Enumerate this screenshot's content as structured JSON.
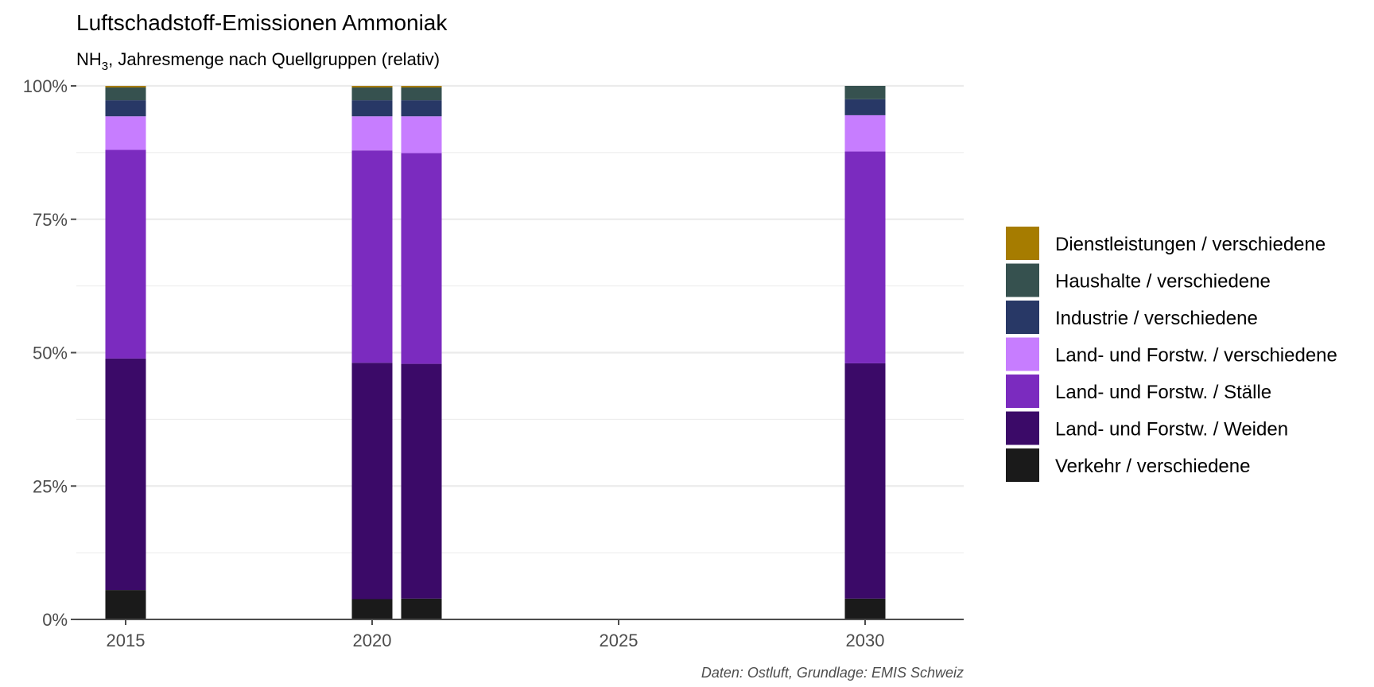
{
  "chart_data": {
    "type": "bar",
    "stacked": true,
    "normalized": true,
    "title": "Luftschadstoff-Emissionen Ammoniak",
    "subtitle": {
      "prefix": "NH",
      "sub": "3",
      "rest": ", Jahresmenge nach Quellgruppen (relativ)"
    },
    "caption": "Daten: Ostluft, Grundlage: EMIS Schweiz",
    "x": [
      2015,
      2020,
      2021,
      2030
    ],
    "xlim": [
      2014,
      2032
    ],
    "xticks": [
      {
        "value": 2015,
        "label": "2015"
      },
      {
        "value": 2020,
        "label": "2020"
      },
      {
        "value": 2025,
        "label": "2025"
      },
      {
        "value": 2030,
        "label": "2030"
      }
    ],
    "ylim": [
      0,
      1
    ],
    "yticks": [
      {
        "value": 0,
        "label": "0%"
      },
      {
        "value": 0.25,
        "label": "25%"
      },
      {
        "value": 0.5,
        "label": "50%"
      },
      {
        "value": 0.75,
        "label": "75%"
      },
      {
        "value": 1,
        "label": "100%"
      }
    ],
    "grid": true,
    "legend_position": "right",
    "series": [
      {
        "name": "Verkehr / verschiedene",
        "color": "#1a1a1a",
        "values": [
          0.055,
          0.038,
          0.039,
          0.039
        ]
      },
      {
        "name": "Land- und Forstw. / Weiden",
        "color": "#3b0a68",
        "values": [
          0.434,
          0.443,
          0.44,
          0.441
        ]
      },
      {
        "name": "Land- und Forstw. / Ställe",
        "color": "#7b2bbf",
        "values": [
          0.391,
          0.398,
          0.395,
          0.397
        ]
      },
      {
        "name": "Land- und Forstw. / verschiedene",
        "color": "#c77dff",
        "values": [
          0.063,
          0.064,
          0.069,
          0.068
        ]
      },
      {
        "name": "Industrie / verschiedene",
        "color": "#283866",
        "values": [
          0.03,
          0.03,
          0.03,
          0.03
        ]
      },
      {
        "name": "Haushalte / verschiedene",
        "color": "#36514f",
        "values": [
          0.024,
          0.024,
          0.024,
          0.025
        ]
      },
      {
        "name": "Dienstleistungen / verschiedene",
        "color": "#a67c00",
        "values": [
          0.003,
          0.003,
          0.003,
          0.0
        ]
      }
    ],
    "legend_order": [
      "Dienstleistungen / verschiedene",
      "Haushalte / verschiedene",
      "Industrie / verschiedene",
      "Land- und Forstw. / verschiedene",
      "Land- und Forstw. / Ställe",
      "Land- und Forstw. / Weiden",
      "Verkehr / verschiedene"
    ],
    "colors": {
      "grid": "#ebebeb",
      "axis": "#4d4d4d"
    }
  }
}
